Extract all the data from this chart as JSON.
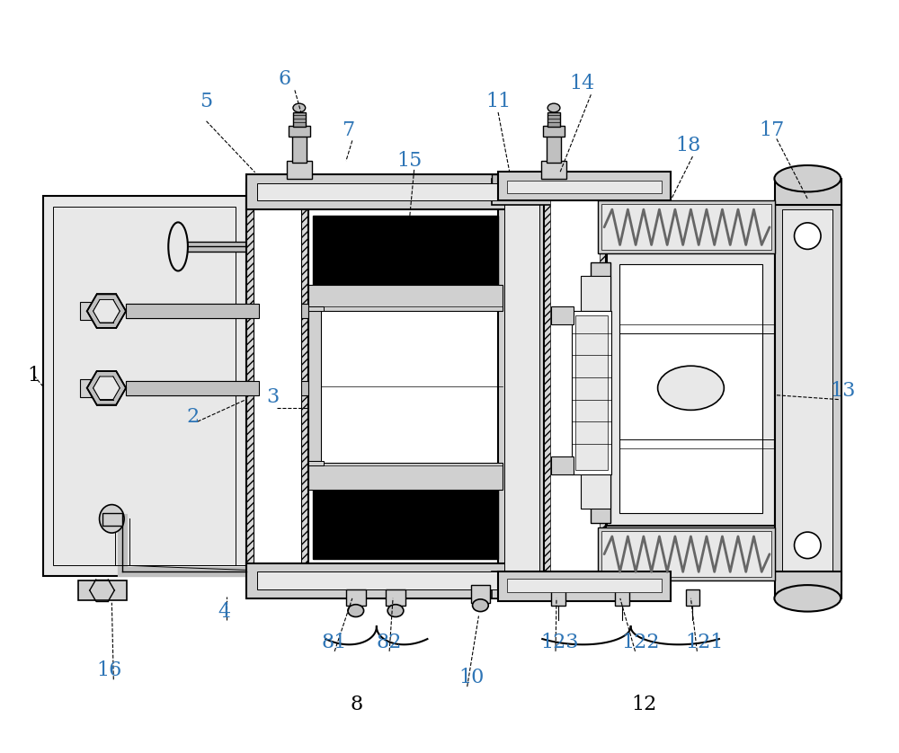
{
  "bg_color": "#ffffff",
  "label_color": "#2e75b6",
  "label_color_black": "#000000",
  "fig_width": 10.0,
  "fig_height": 8.38,
  "hatching": "////",
  "gray_light": "#e8e8e8",
  "gray_mid": "#d0d0d0",
  "gray_dark": "#b0b0b0",
  "gray_hatch": "#c8c8c8",
  "spring_color": "#888888",
  "black": "#000000",
  "white": "#ffffff"
}
